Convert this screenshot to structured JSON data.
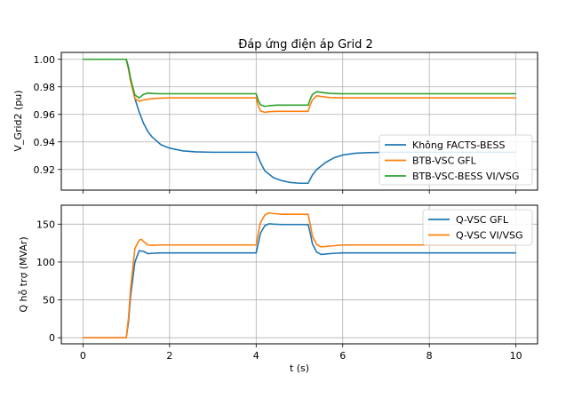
{
  "chart_data": [
    {
      "type": "line",
      "title": "Đáp ứng điện áp Grid 2",
      "xlabel": "",
      "ylabel": "V_Grid2 (pu)",
      "xlim": [
        -0.5,
        10.5
      ],
      "ylim": [
        0.905,
        1.005
      ],
      "xticks": [
        0,
        2,
        4,
        6,
        8,
        10
      ],
      "yticks": [
        0.92,
        0.94,
        0.96,
        0.98,
        1.0
      ],
      "ytick_labels": [
        "0.92",
        "0.94",
        "0.96",
        "0.98",
        "1.00"
      ],
      "grid": true,
      "legend_position": "lower-right",
      "series": [
        {
          "name": "Không FACTS-BESS",
          "color": "#1f77b4",
          "x": [
            0,
            1.0,
            1.05,
            1.1,
            1.2,
            1.3,
            1.4,
            1.5,
            1.6,
            1.8,
            2.0,
            2.3,
            2.6,
            3.0,
            3.5,
            4.0,
            4.05,
            4.1,
            4.2,
            4.4,
            4.6,
            4.8,
            5.0,
            5.2,
            5.25,
            5.3,
            5.4,
            5.6,
            5.8,
            6.0,
            6.3,
            6.6,
            7.0,
            8.0,
            10.0
          ],
          "y": [
            1.0,
            1.0,
            0.9945,
            0.9855,
            0.9715,
            0.9615,
            0.9535,
            0.9475,
            0.9435,
            0.938,
            0.9355,
            0.9335,
            0.9328,
            0.9325,
            0.9325,
            0.9325,
            0.929,
            0.925,
            0.919,
            0.914,
            0.9118,
            0.9105,
            0.91,
            0.91,
            0.913,
            0.916,
            0.92,
            0.925,
            0.9285,
            0.9305,
            0.9318,
            0.9322,
            0.9325,
            0.9325,
            0.9325
          ]
        },
        {
          "name": "BTB-VSC GFL",
          "color": "#ff7f0e",
          "x": [
            0,
            1.0,
            1.05,
            1.1,
            1.2,
            1.3,
            1.4,
            1.6,
            1.8,
            2.0,
            3.0,
            4.0,
            4.05,
            4.1,
            4.2,
            4.3,
            4.5,
            5.0,
            5.2,
            5.25,
            5.3,
            5.4,
            5.5,
            5.7,
            6.0,
            7.0,
            10.0
          ],
          "y": [
            1.0,
            1.0,
            0.993,
            0.984,
            0.9715,
            0.9695,
            0.9705,
            0.9715,
            0.9718,
            0.972,
            0.972,
            0.972,
            0.966,
            0.9625,
            0.9615,
            0.962,
            0.9622,
            0.9622,
            0.9622,
            0.967,
            0.9705,
            0.9735,
            0.973,
            0.9722,
            0.972,
            0.972,
            0.972
          ]
        },
        {
          "name": "BTB-VSC-BESS VI/VSG",
          "color": "#2ca02c",
          "x": [
            0,
            1.0,
            1.05,
            1.1,
            1.2,
            1.3,
            1.4,
            1.5,
            1.6,
            1.8,
            2.0,
            3.0,
            4.0,
            4.05,
            4.1,
            4.2,
            4.3,
            4.5,
            5.0,
            5.2,
            5.25,
            5.3,
            5.4,
            5.5,
            5.7,
            6.0,
            7.0,
            10.0
          ],
          "y": [
            1.0,
            1.0,
            0.994,
            0.986,
            0.974,
            0.972,
            0.9745,
            0.9755,
            0.9752,
            0.975,
            0.975,
            0.975,
            0.975,
            0.97,
            0.967,
            0.9658,
            0.9663,
            0.9667,
            0.9667,
            0.9667,
            0.971,
            0.9745,
            0.9765,
            0.976,
            0.9752,
            0.975,
            0.975,
            0.975
          ]
        }
      ]
    },
    {
      "type": "line",
      "title": "",
      "xlabel": "t (s)",
      "ylabel": "Q hỗ trợ (MVAr)",
      "xlim": [
        -0.5,
        10.5
      ],
      "ylim": [
        -8,
        175
      ],
      "xticks": [
        0,
        2,
        4,
        6,
        8,
        10
      ],
      "xtick_labels": [
        "0",
        "2",
        "4",
        "6",
        "8",
        "10"
      ],
      "yticks": [
        0,
        50,
        100,
        150
      ],
      "ytick_labels": [
        "0",
        "50",
        "100",
        "150"
      ],
      "grid": true,
      "legend_position": "upper-right",
      "series": [
        {
          "name": "Q-VSC GFL",
          "color": "#1f77b4",
          "x": [
            0,
            1.0,
            1.05,
            1.1,
            1.2,
            1.3,
            1.4,
            1.5,
            1.6,
            1.8,
            2.0,
            3.0,
            4.0,
            4.05,
            4.1,
            4.2,
            4.3,
            4.4,
            4.6,
            5.0,
            5.2,
            5.25,
            5.3,
            5.4,
            5.5,
            5.6,
            5.8,
            6.0,
            7.0,
            10.0
          ],
          "y": [
            0,
            0,
            20,
            55,
            100,
            115,
            114,
            111,
            111.5,
            112,
            112,
            112,
            112,
            125,
            138,
            148,
            150.5,
            150,
            149.5,
            149.5,
            149.5,
            138,
            124,
            113,
            110,
            110.5,
            111.5,
            112,
            112,
            112
          ]
        },
        {
          "name": "Q-VSC VI/VSG",
          "color": "#ff7f0e",
          "x": [
            0,
            1.0,
            1.05,
            1.1,
            1.2,
            1.3,
            1.35,
            1.4,
            1.5,
            1.6,
            1.8,
            2.0,
            3.0,
            4.0,
            4.05,
            4.1,
            4.2,
            4.3,
            4.4,
            4.6,
            5.0,
            5.2,
            5.25,
            5.3,
            5.4,
            5.5,
            5.6,
            5.8,
            6.0,
            7.0,
            10.0
          ],
          "y": [
            0,
            0,
            25,
            65,
            118,
            129,
            130,
            127,
            122.5,
            122,
            122.5,
            122.5,
            122.5,
            122.5,
            138,
            152,
            162,
            165,
            164,
            163,
            163,
            163,
            150,
            134,
            123,
            120,
            120.5,
            121.5,
            122.5,
            122.5,
            122.5
          ]
        }
      ]
    }
  ]
}
